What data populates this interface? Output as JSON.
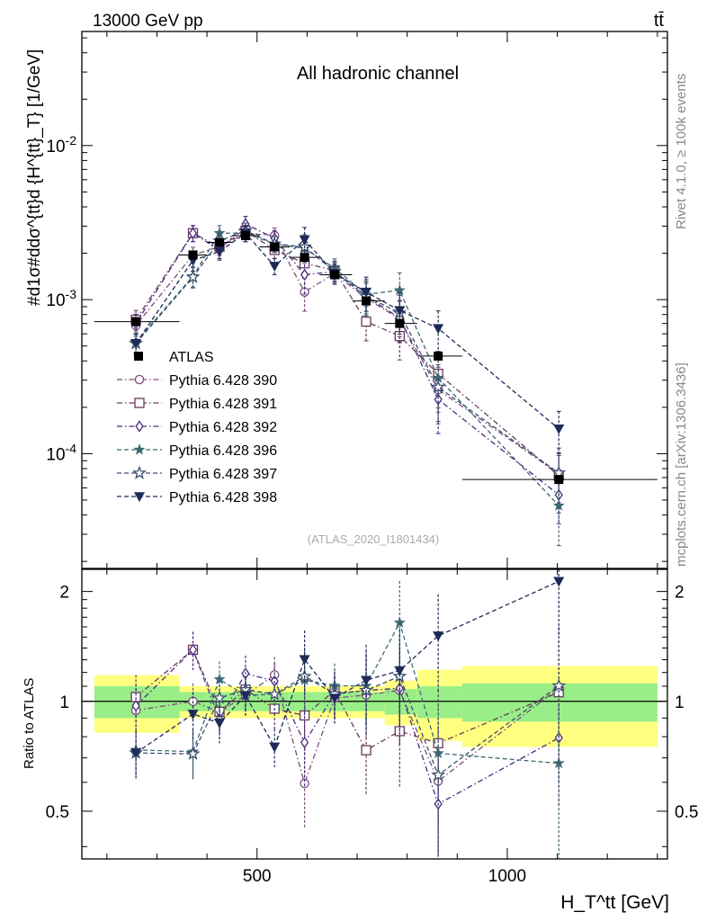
{
  "header": {
    "left": "13000 GeV pp",
    "right": "tt̄"
  },
  "side_labels": {
    "rivet": "Rivet 4.1.0, ≥ 100k events",
    "mcplots": "mcplots.cern.ch [arXiv:1306.3436]"
  },
  "chart_data": {
    "type": "line",
    "title": "All hadronic channel",
    "analysis_tag": "(ATLAS_2020_I1801434)",
    "ylabel": "#d1σ#ddσ^{tt}d {H^{tt}_T} [1/GeV]",
    "xlabel": "H_T^tt [GeV]",
    "xlim": [
      150,
      1320
    ],
    "main_ylim": [
      1.8e-05,
      0.055
    ],
    "main_yscale": "log",
    "main_ticklabels": [
      "10^-4",
      "10^-3",
      "10^-2"
    ],
    "ratio_ylabel": "Ratio to ATLAS",
    "ratio_ylim": [
      0.37,
      2.3
    ],
    "ratio_ticklabels": [
      "0.5",
      "1",
      "2"
    ],
    "x_ticklabels": [
      "500",
      "1000"
    ],
    "bins": [
      [
        175,
        345
      ],
      [
        345,
        400
      ],
      [
        400,
        450
      ],
      [
        450,
        505
      ],
      [
        505,
        565
      ],
      [
        565,
        625
      ],
      [
        625,
        690
      ],
      [
        690,
        755
      ],
      [
        755,
        820
      ],
      [
        820,
        910
      ],
      [
        910,
        1300
      ]
    ],
    "x": [
      258,
      372,
      425,
      477,
      535,
      595,
      655,
      718,
      785,
      862,
      1103
    ],
    "data": {
      "name": "ATLAS",
      "values": [
        0.00072,
        0.00195,
        0.00235,
        0.0026,
        0.0022,
        0.00188,
        0.00145,
        0.00098,
        0.0007,
        0.00043,
        6.8e-05
      ],
      "band_inner": [
        0.1,
        0.06,
        0.06,
        0.06,
        0.06,
        0.06,
        0.06,
        0.06,
        0.08,
        0.1,
        0.12
      ],
      "band_outer": [
        0.18,
        0.1,
        0.1,
        0.1,
        0.1,
        0.1,
        0.1,
        0.1,
        0.14,
        0.22,
        0.25
      ]
    },
    "series": [
      {
        "name": "Pythia 6.428 390",
        "color": "#7b4f7c",
        "marker": "circle-open",
        "dash": "dash-dot",
        "values": [
          0.00068,
          0.00195,
          0.0022,
          0.0027,
          0.0026,
          0.00112,
          0.00148,
          0.00102,
          0.00075,
          0.00026,
          7.4e-05
        ],
        "rel_err": [
          0.15,
          0.12,
          0.12,
          0.12,
          0.12,
          0.25,
          0.15,
          0.25,
          0.3,
          0.4,
          0.35
        ]
      },
      {
        "name": "Pythia 6.428 391",
        "color": "#6a3a5a",
        "marker": "square-open",
        "dash": "dash-dot",
        "values": [
          0.00074,
          0.0027,
          0.0022,
          0.0028,
          0.0021,
          0.00172,
          0.00155,
          0.00072,
          0.00058,
          0.00033,
          7.2e-05
        ],
        "rel_err": [
          0.15,
          0.12,
          0.12,
          0.12,
          0.12,
          0.2,
          0.15,
          0.25,
          0.3,
          0.4,
          0.35
        ]
      },
      {
        "name": "Pythia 6.428 392",
        "color": "#4a2a80",
        "marker": "diamond-open",
        "dash": "dash-dot",
        "values": [
          0.0007,
          0.0027,
          0.0021,
          0.0031,
          0.0025,
          0.00145,
          0.00152,
          0.00105,
          0.00076,
          0.000225,
          5.4e-05
        ],
        "rel_err": [
          0.15,
          0.12,
          0.12,
          0.12,
          0.12,
          0.25,
          0.15,
          0.25,
          0.3,
          0.4,
          0.35
        ]
      },
      {
        "name": "Pythia 6.428 396",
        "color": "#3d6a72",
        "marker": "star-filled",
        "dash": "dashed",
        "values": [
          0.00053,
          0.00142,
          0.0027,
          0.0027,
          0.0023,
          0.00215,
          0.0016,
          0.00108,
          0.00115,
          0.00031,
          4.6e-05
        ],
        "rel_err": [
          0.15,
          0.15,
          0.12,
          0.12,
          0.12,
          0.2,
          0.15,
          0.25,
          0.3,
          0.4,
          0.45
        ]
      },
      {
        "name": "Pythia 6.428 397",
        "color": "#3b4f6e",
        "marker": "star-open",
        "dash": "dashed",
        "values": [
          0.00052,
          0.0014,
          0.0024,
          0.0028,
          0.0023,
          0.0022,
          0.00152,
          0.00105,
          0.00082,
          0.00027,
          7.5e-05
        ],
        "rel_err": [
          0.15,
          0.15,
          0.12,
          0.12,
          0.12,
          0.2,
          0.15,
          0.25,
          0.3,
          0.4,
          0.45
        ]
      },
      {
        "name": "Pythia 6.428 398",
        "color": "#1e2a58",
        "marker": "triangle-down-filled",
        "dash": "dashed",
        "values": [
          0.00052,
          0.0018,
          0.00205,
          0.0027,
          0.00165,
          0.00245,
          0.00148,
          0.00112,
          0.00085,
          0.00065,
          0.000145
        ],
        "rel_err": [
          0.15,
          0.15,
          0.12,
          0.12,
          0.12,
          0.2,
          0.15,
          0.25,
          0.3,
          0.3,
          0.3
        ]
      }
    ]
  }
}
